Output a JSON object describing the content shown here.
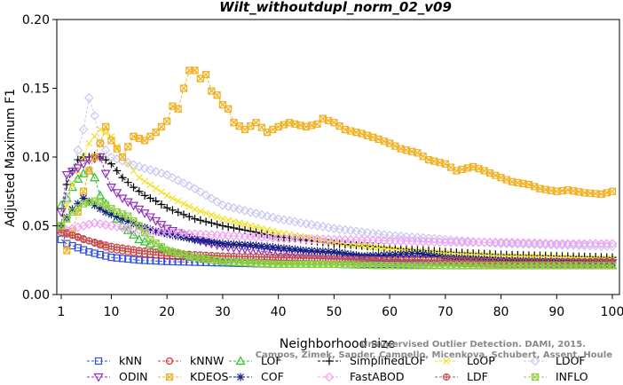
{
  "chart_data": {
    "type": "line",
    "title": "Wilt_withoutdupl_norm_02_v09",
    "xlabel": "Neighborhood size",
    "ylabel": "Adjusted Maximum F1",
    "xlim": [
      1,
      100
    ],
    "ylim": [
      0,
      0.2
    ],
    "x_ticks": [
      1,
      10,
      20,
      30,
      40,
      50,
      60,
      70,
      80,
      90,
      100
    ],
    "y_ticks": [
      0.0,
      0.05,
      0.1,
      0.15,
      0.2
    ],
    "y_tick_labels": [
      "0.00",
      "0.05",
      "0.10",
      "0.15",
      "0.20"
    ],
    "grid": false,
    "legend_position": "bottom",
    "watermark": [
      "Campos, Zimek, Sander, Campello, Micenkova, Schubert, Assent, Houle",
      "Unsupervised Outlier Detection. DAMI, 2015."
    ],
    "series": [
      {
        "name": "kNN",
        "color": "#3050e0",
        "marker": "square",
        "points": [
          [
            1,
            0.04
          ],
          [
            2,
            0.037
          ],
          [
            4,
            0.034
          ],
          [
            6,
            0.031
          ],
          [
            8,
            0.029
          ],
          [
            10,
            0.027
          ],
          [
            15,
            0.025
          ],
          [
            20,
            0.024
          ],
          [
            30,
            0.023
          ],
          [
            40,
            0.022
          ],
          [
            50,
            0.022
          ],
          [
            60,
            0.022
          ],
          [
            70,
            0.021
          ],
          [
            80,
            0.021
          ],
          [
            90,
            0.021
          ],
          [
            100,
            0.021
          ]
        ]
      },
      {
        "name": "kNNW",
        "color": "#e03030",
        "marker": "circle",
        "points": [
          [
            1,
            0.048
          ],
          [
            2,
            0.045
          ],
          [
            4,
            0.042
          ],
          [
            6,
            0.039
          ],
          [
            8,
            0.036
          ],
          [
            10,
            0.033
          ],
          [
            15,
            0.03
          ],
          [
            20,
            0.028
          ],
          [
            30,
            0.026
          ],
          [
            40,
            0.025
          ],
          [
            50,
            0.024
          ],
          [
            60,
            0.023
          ],
          [
            70,
            0.023
          ],
          [
            80,
            0.022
          ],
          [
            90,
            0.022
          ],
          [
            100,
            0.022
          ]
        ]
      },
      {
        "name": "LOF",
        "color": "#30c030",
        "marker": "triangle",
        "points": [
          [
            1,
            0.065
          ],
          [
            2,
            0.07
          ],
          [
            3,
            0.078
          ],
          [
            4,
            0.084
          ],
          [
            5,
            0.088
          ],
          [
            6,
            0.09
          ],
          [
            7,
            0.085
          ],
          [
            8,
            0.072
          ],
          [
            10,
            0.06
          ],
          [
            12,
            0.05
          ],
          [
            15,
            0.04
          ],
          [
            20,
            0.032
          ],
          [
            25,
            0.027
          ],
          [
            30,
            0.024
          ],
          [
            40,
            0.022
          ],
          [
            50,
            0.022
          ],
          [
            60,
            0.021
          ],
          [
            70,
            0.021
          ],
          [
            80,
            0.021
          ],
          [
            90,
            0.021
          ],
          [
            100,
            0.021
          ]
        ]
      },
      {
        "name": "SimplifiedLOF",
        "color": "#000000",
        "marker": "plus",
        "points": [
          [
            1,
            0.05
          ],
          [
            2,
            0.08
          ],
          [
            3,
            0.09
          ],
          [
            4,
            0.098
          ],
          [
            5,
            0.1
          ],
          [
            6,
            0.1
          ],
          [
            7,
            0.101
          ],
          [
            8,
            0.1
          ],
          [
            9,
            0.098
          ],
          [
            10,
            0.095
          ],
          [
            12,
            0.085
          ],
          [
            14,
            0.078
          ],
          [
            16,
            0.072
          ],
          [
            18,
            0.068
          ],
          [
            20,
            0.063
          ],
          [
            25,
            0.055
          ],
          [
            30,
            0.05
          ],
          [
            35,
            0.046
          ],
          [
            40,
            0.042
          ],
          [
            50,
            0.037
          ],
          [
            60,
            0.034
          ],
          [
            70,
            0.031
          ],
          [
            80,
            0.029
          ],
          [
            90,
            0.028
          ],
          [
            100,
            0.027
          ]
        ]
      },
      {
        "name": "LoOP",
        "color": "#f0e020",
        "marker": "cross",
        "points": [
          [
            1,
            0.05
          ],
          [
            3,
            0.08
          ],
          [
            5,
            0.1
          ],
          [
            6,
            0.11
          ],
          [
            8,
            0.12
          ],
          [
            10,
            0.115
          ],
          [
            12,
            0.1
          ],
          [
            15,
            0.085
          ],
          [
            20,
            0.072
          ],
          [
            25,
            0.062
          ],
          [
            30,
            0.055
          ],
          [
            40,
            0.045
          ],
          [
            50,
            0.038
          ],
          [
            60,
            0.033
          ],
          [
            70,
            0.03
          ],
          [
            80,
            0.028
          ],
          [
            90,
            0.027
          ],
          [
            100,
            0.026
          ]
        ]
      },
      {
        "name": "LDOF",
        "color": "#c8c8f0",
        "marker": "diamond",
        "points": [
          [
            1,
            0.05
          ],
          [
            3,
            0.09
          ],
          [
            5,
            0.12
          ],
          [
            6,
            0.143
          ],
          [
            7,
            0.13
          ],
          [
            8,
            0.11
          ],
          [
            10,
            0.1
          ],
          [
            15,
            0.093
          ],
          [
            20,
            0.087
          ],
          [
            25,
            0.077
          ],
          [
            30,
            0.065
          ],
          [
            40,
            0.055
          ],
          [
            50,
            0.048
          ],
          [
            60,
            0.043
          ],
          [
            70,
            0.04
          ],
          [
            80,
            0.037
          ],
          [
            90,
            0.036
          ],
          [
            100,
            0.035
          ]
        ]
      },
      {
        "name": "ODIN",
        "color": "#9030c0",
        "marker": "triangle-down",
        "points": [
          [
            1,
            0.06
          ],
          [
            2,
            0.087
          ],
          [
            4,
            0.092
          ],
          [
            6,
            0.098
          ],
          [
            8,
            0.1
          ],
          [
            9,
            0.088
          ],
          [
            10,
            0.078
          ],
          [
            12,
            0.07
          ],
          [
            15,
            0.062
          ],
          [
            20,
            0.048
          ],
          [
            25,
            0.04
          ],
          [
            30,
            0.035
          ],
          [
            40,
            0.03
          ],
          [
            50,
            0.028
          ],
          [
            60,
            0.026
          ],
          [
            70,
            0.025
          ],
          [
            80,
            0.024
          ],
          [
            90,
            0.023
          ],
          [
            100,
            0.023
          ]
        ]
      },
      {
        "name": "KDEOS",
        "color": "#f0b020",
        "marker": "square-x",
        "points": [
          [
            1,
            0.05
          ],
          [
            2,
            0.032
          ],
          [
            4,
            0.06
          ],
          [
            6,
            0.09
          ],
          [
            8,
            0.11
          ],
          [
            9,
            0.122
          ],
          [
            10,
            0.112
          ],
          [
            12,
            0.1
          ],
          [
            14,
            0.115
          ],
          [
            16,
            0.112
          ],
          [
            18,
            0.118
          ],
          [
            20,
            0.126
          ],
          [
            21,
            0.137
          ],
          [
            22,
            0.135
          ],
          [
            23,
            0.15
          ],
          [
            24,
            0.163
          ],
          [
            25,
            0.163
          ],
          [
            26,
            0.157
          ],
          [
            27,
            0.16
          ],
          [
            28,
            0.148
          ],
          [
            29,
            0.145
          ],
          [
            30,
            0.138
          ],
          [
            31,
            0.135
          ],
          [
            32,
            0.125
          ],
          [
            34,
            0.12
          ],
          [
            36,
            0.125
          ],
          [
            38,
            0.118
          ],
          [
            40,
            0.122
          ],
          [
            42,
            0.125
          ],
          [
            45,
            0.122
          ],
          [
            47,
            0.124
          ],
          [
            48,
            0.128
          ],
          [
            50,
            0.125
          ],
          [
            52,
            0.12
          ],
          [
            55,
            0.117
          ],
          [
            58,
            0.113
          ],
          [
            60,
            0.11
          ],
          [
            62,
            0.106
          ],
          [
            65,
            0.103
          ],
          [
            67,
            0.098
          ],
          [
            70,
            0.095
          ],
          [
            72,
            0.09
          ],
          [
            75,
            0.093
          ],
          [
            77,
            0.09
          ],
          [
            80,
            0.085
          ],
          [
            82,
            0.082
          ],
          [
            85,
            0.08
          ],
          [
            87,
            0.077
          ],
          [
            90,
            0.075
          ],
          [
            92,
            0.076
          ],
          [
            95,
            0.074
          ],
          [
            98,
            0.073
          ],
          [
            100,
            0.075
          ]
        ]
      },
      {
        "name": "COF",
        "color": "#102080",
        "marker": "asterisk",
        "points": [
          [
            1,
            0.05
          ],
          [
            3,
            0.062
          ],
          [
            5,
            0.07
          ],
          [
            7,
            0.065
          ],
          [
            9,
            0.06
          ],
          [
            12,
            0.055
          ],
          [
            15,
            0.05
          ],
          [
            18,
            0.046
          ],
          [
            20,
            0.044
          ],
          [
            25,
            0.04
          ],
          [
            30,
            0.037
          ],
          [
            35,
            0.036
          ],
          [
            40,
            0.034
          ],
          [
            45,
            0.032
          ],
          [
            50,
            0.031
          ],
          [
            55,
            0.028
          ],
          [
            60,
            0.029
          ],
          [
            65,
            0.03
          ],
          [
            70,
            0.027
          ],
          [
            75,
            0.026
          ],
          [
            80,
            0.025
          ],
          [
            90,
            0.024
          ],
          [
            100,
            0.023
          ]
        ]
      },
      {
        "name": "FastABOD",
        "color": "#f0a0f0",
        "marker": "diamond",
        "points": [
          [
            1,
            0.045
          ],
          [
            3,
            0.048
          ],
          [
            5,
            0.05
          ],
          [
            7,
            0.052
          ],
          [
            10,
            0.05
          ],
          [
            15,
            0.047
          ],
          [
            20,
            0.045
          ],
          [
            30,
            0.043
          ],
          [
            40,
            0.041
          ],
          [
            50,
            0.04
          ],
          [
            60,
            0.039
          ],
          [
            70,
            0.038
          ],
          [
            80,
            0.038
          ],
          [
            90,
            0.037
          ],
          [
            100,
            0.037
          ]
        ]
      },
      {
        "name": "LDF",
        "color": "#c05050",
        "marker": "circle-plus",
        "points": [
          [
            1,
            0.045
          ],
          [
            3,
            0.043
          ],
          [
            5,
            0.04
          ],
          [
            8,
            0.037
          ],
          [
            10,
            0.035
          ],
          [
            15,
            0.032
          ],
          [
            20,
            0.03
          ],
          [
            30,
            0.028
          ],
          [
            40,
            0.027
          ],
          [
            50,
            0.026
          ],
          [
            60,
            0.025
          ],
          [
            70,
            0.025
          ],
          [
            80,
            0.024
          ],
          [
            90,
            0.024
          ],
          [
            100,
            0.024
          ]
        ]
      },
      {
        "name": "INFLO",
        "color": "#90d040",
        "marker": "square-x",
        "points": [
          [
            1,
            0.05
          ],
          [
            3,
            0.06
          ],
          [
            5,
            0.066
          ],
          [
            7,
            0.068
          ],
          [
            9,
            0.065
          ],
          [
            11,
            0.06
          ],
          [
            13,
            0.057
          ],
          [
            15,
            0.05
          ],
          [
            17,
            0.04
          ],
          [
            20,
            0.032
          ],
          [
            25,
            0.027
          ],
          [
            30,
            0.024
          ],
          [
            40,
            0.022
          ],
          [
            50,
            0.022
          ],
          [
            60,
            0.021
          ],
          [
            70,
            0.021
          ],
          [
            80,
            0.021
          ],
          [
            90,
            0.021
          ],
          [
            100,
            0.021
          ]
        ]
      }
    ]
  }
}
